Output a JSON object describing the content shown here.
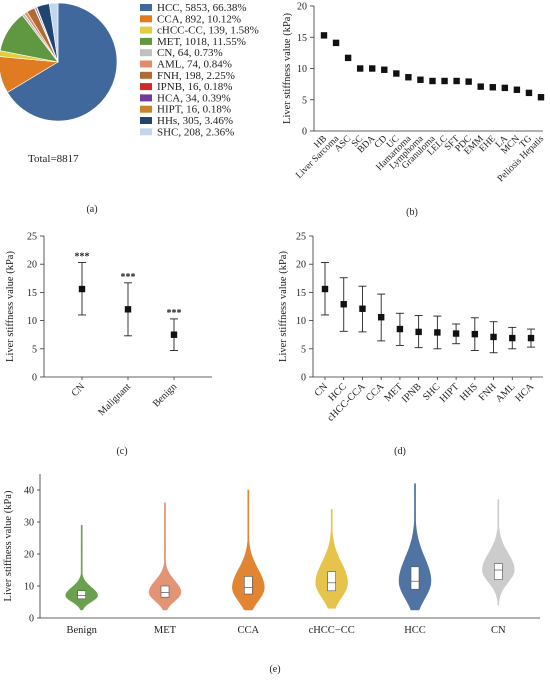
{
  "chart_data": [
    {
      "panel": "(a)",
      "type": "pie",
      "footnote": "Total=8817",
      "slices": [
        {
          "label": "HCC, 5853, 66.38%",
          "name": "HCC",
          "count": 5853,
          "pct": 66.38,
          "color": "#41689c"
        },
        {
          "label": "CCA, 892, 10.12%",
          "name": "CCA",
          "count": 892,
          "pct": 10.12,
          "color": "#e07b22"
        },
        {
          "label": "cHCC-CC, 139, 1.58%",
          "name": "cHCC-CC",
          "count": 139,
          "pct": 1.58,
          "color": "#e4cd3c"
        },
        {
          "label": "MET, 1018, 11.55%",
          "name": "MET",
          "count": 1018,
          "pct": 11.55,
          "color": "#5f9840"
        },
        {
          "label": "CN, 64, 0.73%",
          "name": "CN",
          "count": 64,
          "pct": 0.73,
          "color": "#c0c0c0"
        },
        {
          "label": "AML, 74, 0.84%",
          "name": "AML",
          "count": 74,
          "pct": 0.84,
          "color": "#e08c6a"
        },
        {
          "label": "FNH, 198, 2.25%",
          "name": "FNH",
          "count": 198,
          "pct": 2.25,
          "color": "#b06a34"
        },
        {
          "label": "IPNB, 16, 0.18%",
          "name": "IPNB",
          "count": 16,
          "pct": 0.18,
          "color": "#d02a2a"
        },
        {
          "label": "HCA, 34, 0.39%",
          "name": "HCA",
          "count": 34,
          "pct": 0.39,
          "color": "#6f3a98"
        },
        {
          "label": "HIPT, 16, 0.18%",
          "name": "HIPT",
          "count": 16,
          "pct": 0.18,
          "color": "#c88426"
        },
        {
          "label": "HHs, 305, 3.46%",
          "name": "HHs",
          "count": 305,
          "pct": 3.46,
          "color": "#1f4570"
        },
        {
          "label": "SHC, 208, 2.36%",
          "name": "SHC",
          "count": 208,
          "pct": 2.36,
          "color": "#c3d7ec"
        }
      ]
    },
    {
      "panel": "(b)",
      "type": "scatter",
      "ylabel": "Liver stiffness value (kPa)",
      "ylim": [
        0,
        20
      ],
      "yticks": [
        0,
        5,
        10,
        15,
        20
      ],
      "categories": [
        "HB",
        "Liver Sarcoma",
        "ASC",
        "SC",
        "BDA",
        "CD",
        "UC",
        "Hamartoma",
        "Lymphoma",
        "Granuloma",
        "LELC",
        "SFT",
        "PDC",
        "EMM",
        "EHE",
        "LA",
        "MCN",
        "TG",
        "Peliosis Hepatis"
      ],
      "values": [
        15.3,
        14.1,
        11.7,
        10.0,
        10.0,
        9.8,
        9.2,
        8.6,
        8.2,
        8.0,
        8.0,
        8.0,
        7.9,
        7.1,
        7.0,
        6.9,
        6.6,
        6.1,
        5.4
      ]
    },
    {
      "panel": "(c)",
      "type": "scatter",
      "ylabel": "Liver stiffness value (kPa)",
      "ylim": [
        0,
        25
      ],
      "yticks": [
        0,
        5,
        10,
        15,
        20,
        25
      ],
      "categories": [
        "CN",
        "Malignant",
        "Benign"
      ],
      "mean": [
        15.6,
        12.0,
        7.5
      ],
      "low": [
        11.0,
        7.3,
        4.7
      ],
      "high": [
        20.3,
        16.7,
        10.3
      ],
      "annotations": [
        "***",
        "***",
        "***"
      ]
    },
    {
      "panel": "(d)",
      "type": "scatter",
      "ylabel": "Liver stiffness value (kPa)",
      "ylim": [
        0,
        25
      ],
      "yticks": [
        0,
        5,
        10,
        15,
        20,
        25
      ],
      "categories": [
        "CN",
        "HCC",
        "cHCC-CCA",
        "CCA",
        "MET",
        "IPNB",
        "SHC",
        "HIPT",
        "HHS",
        "FNH",
        "AML",
        "HCA"
      ],
      "mean": [
        15.6,
        12.9,
        12.1,
        10.6,
        8.5,
        8.0,
        7.9,
        7.7,
        7.6,
        7.1,
        6.9,
        6.9
      ],
      "low": [
        11.0,
        8.1,
        8.0,
        6.4,
        5.6,
        5.2,
        5.0,
        5.9,
        4.7,
        4.3,
        5.0,
        5.3
      ],
      "high": [
        20.3,
        17.6,
        16.1,
        14.7,
        11.3,
        10.9,
        10.8,
        9.4,
        10.5,
        9.8,
        8.8,
        8.5
      ]
    },
    {
      "panel": "(e)",
      "type": "violin",
      "ylabel": "Liver stiffness value (kPa)",
      "ylim": [
        0,
        45
      ],
      "yticks": [
        0,
        10,
        20,
        30,
        40
      ],
      "categories": [
        "Benign",
        "MET",
        "CCA",
        "cHCC−CC",
        "HCC",
        "CN"
      ],
      "series": [
        {
          "name": "Benign",
          "median": 7,
          "q1": 6,
          "q3": 8.5,
          "min": 2.5,
          "max": 29,
          "color": "#5f9840"
        },
        {
          "name": "MET",
          "median": 8,
          "q1": 6.5,
          "q3": 10,
          "min": 2.5,
          "max": 36,
          "color": "#e08c6a"
        },
        {
          "name": "CCA",
          "median": 9.5,
          "q1": 7.5,
          "q3": 13,
          "min": 2.5,
          "max": 40,
          "color": "#e07b22"
        },
        {
          "name": "cHCC−CC",
          "median": 11,
          "q1": 8.5,
          "q3": 14.5,
          "min": 3,
          "max": 34,
          "color": "#e4c03c"
        },
        {
          "name": "HCC",
          "median": 11.5,
          "q1": 9,
          "q3": 16,
          "min": 2.5,
          "max": 42,
          "color": "#41689c"
        },
        {
          "name": "CN",
          "median": 15,
          "q1": 12,
          "q3": 17,
          "min": 4,
          "max": 37,
          "color": "#c8c8c8"
        }
      ]
    }
  ]
}
